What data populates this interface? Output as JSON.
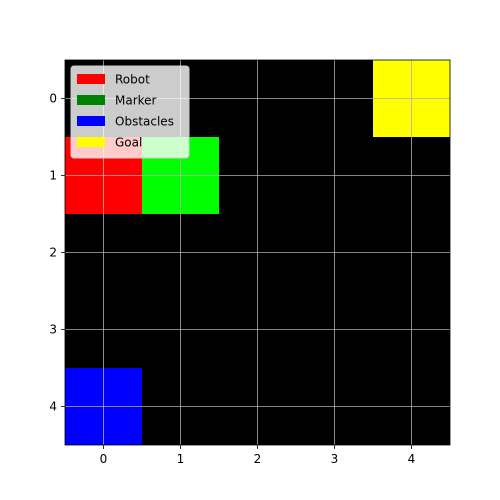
{
  "chart_data": {
    "type": "heatmap",
    "title": "",
    "xlabel": "",
    "ylabel": "",
    "grid_size": [
      5,
      5
    ],
    "x_ticks": [
      "0",
      "1",
      "2",
      "3",
      "4"
    ],
    "y_ticks": [
      "0",
      "1",
      "2",
      "3",
      "4"
    ],
    "xlim": [
      -0.5,
      4.5
    ],
    "ylim": [
      4.5,
      -0.5
    ],
    "background_color": "#000000",
    "grid": true,
    "grid_color": "#b0b0b0",
    "cells": [
      {
        "row": 1,
        "col": 0,
        "category": "Robot",
        "color": "#ff0000"
      },
      {
        "row": 1,
        "col": 1,
        "category": "Marker",
        "color": "#00ff00"
      },
      {
        "row": 0,
        "col": 4,
        "category": "Goal",
        "color": "#ffff00"
      },
      {
        "row": 4,
        "col": 0,
        "category": "Obstacles",
        "color": "#0000ff"
      }
    ],
    "legend": {
      "placement": "upper-left",
      "entries": [
        {
          "label": "Robot",
          "color": "#ff0000"
        },
        {
          "label": "Marker",
          "color": "#008000"
        },
        {
          "label": "Obstacles",
          "color": "#0000ff"
        },
        {
          "label": "Goal",
          "color": "#ffff00"
        }
      ]
    }
  }
}
